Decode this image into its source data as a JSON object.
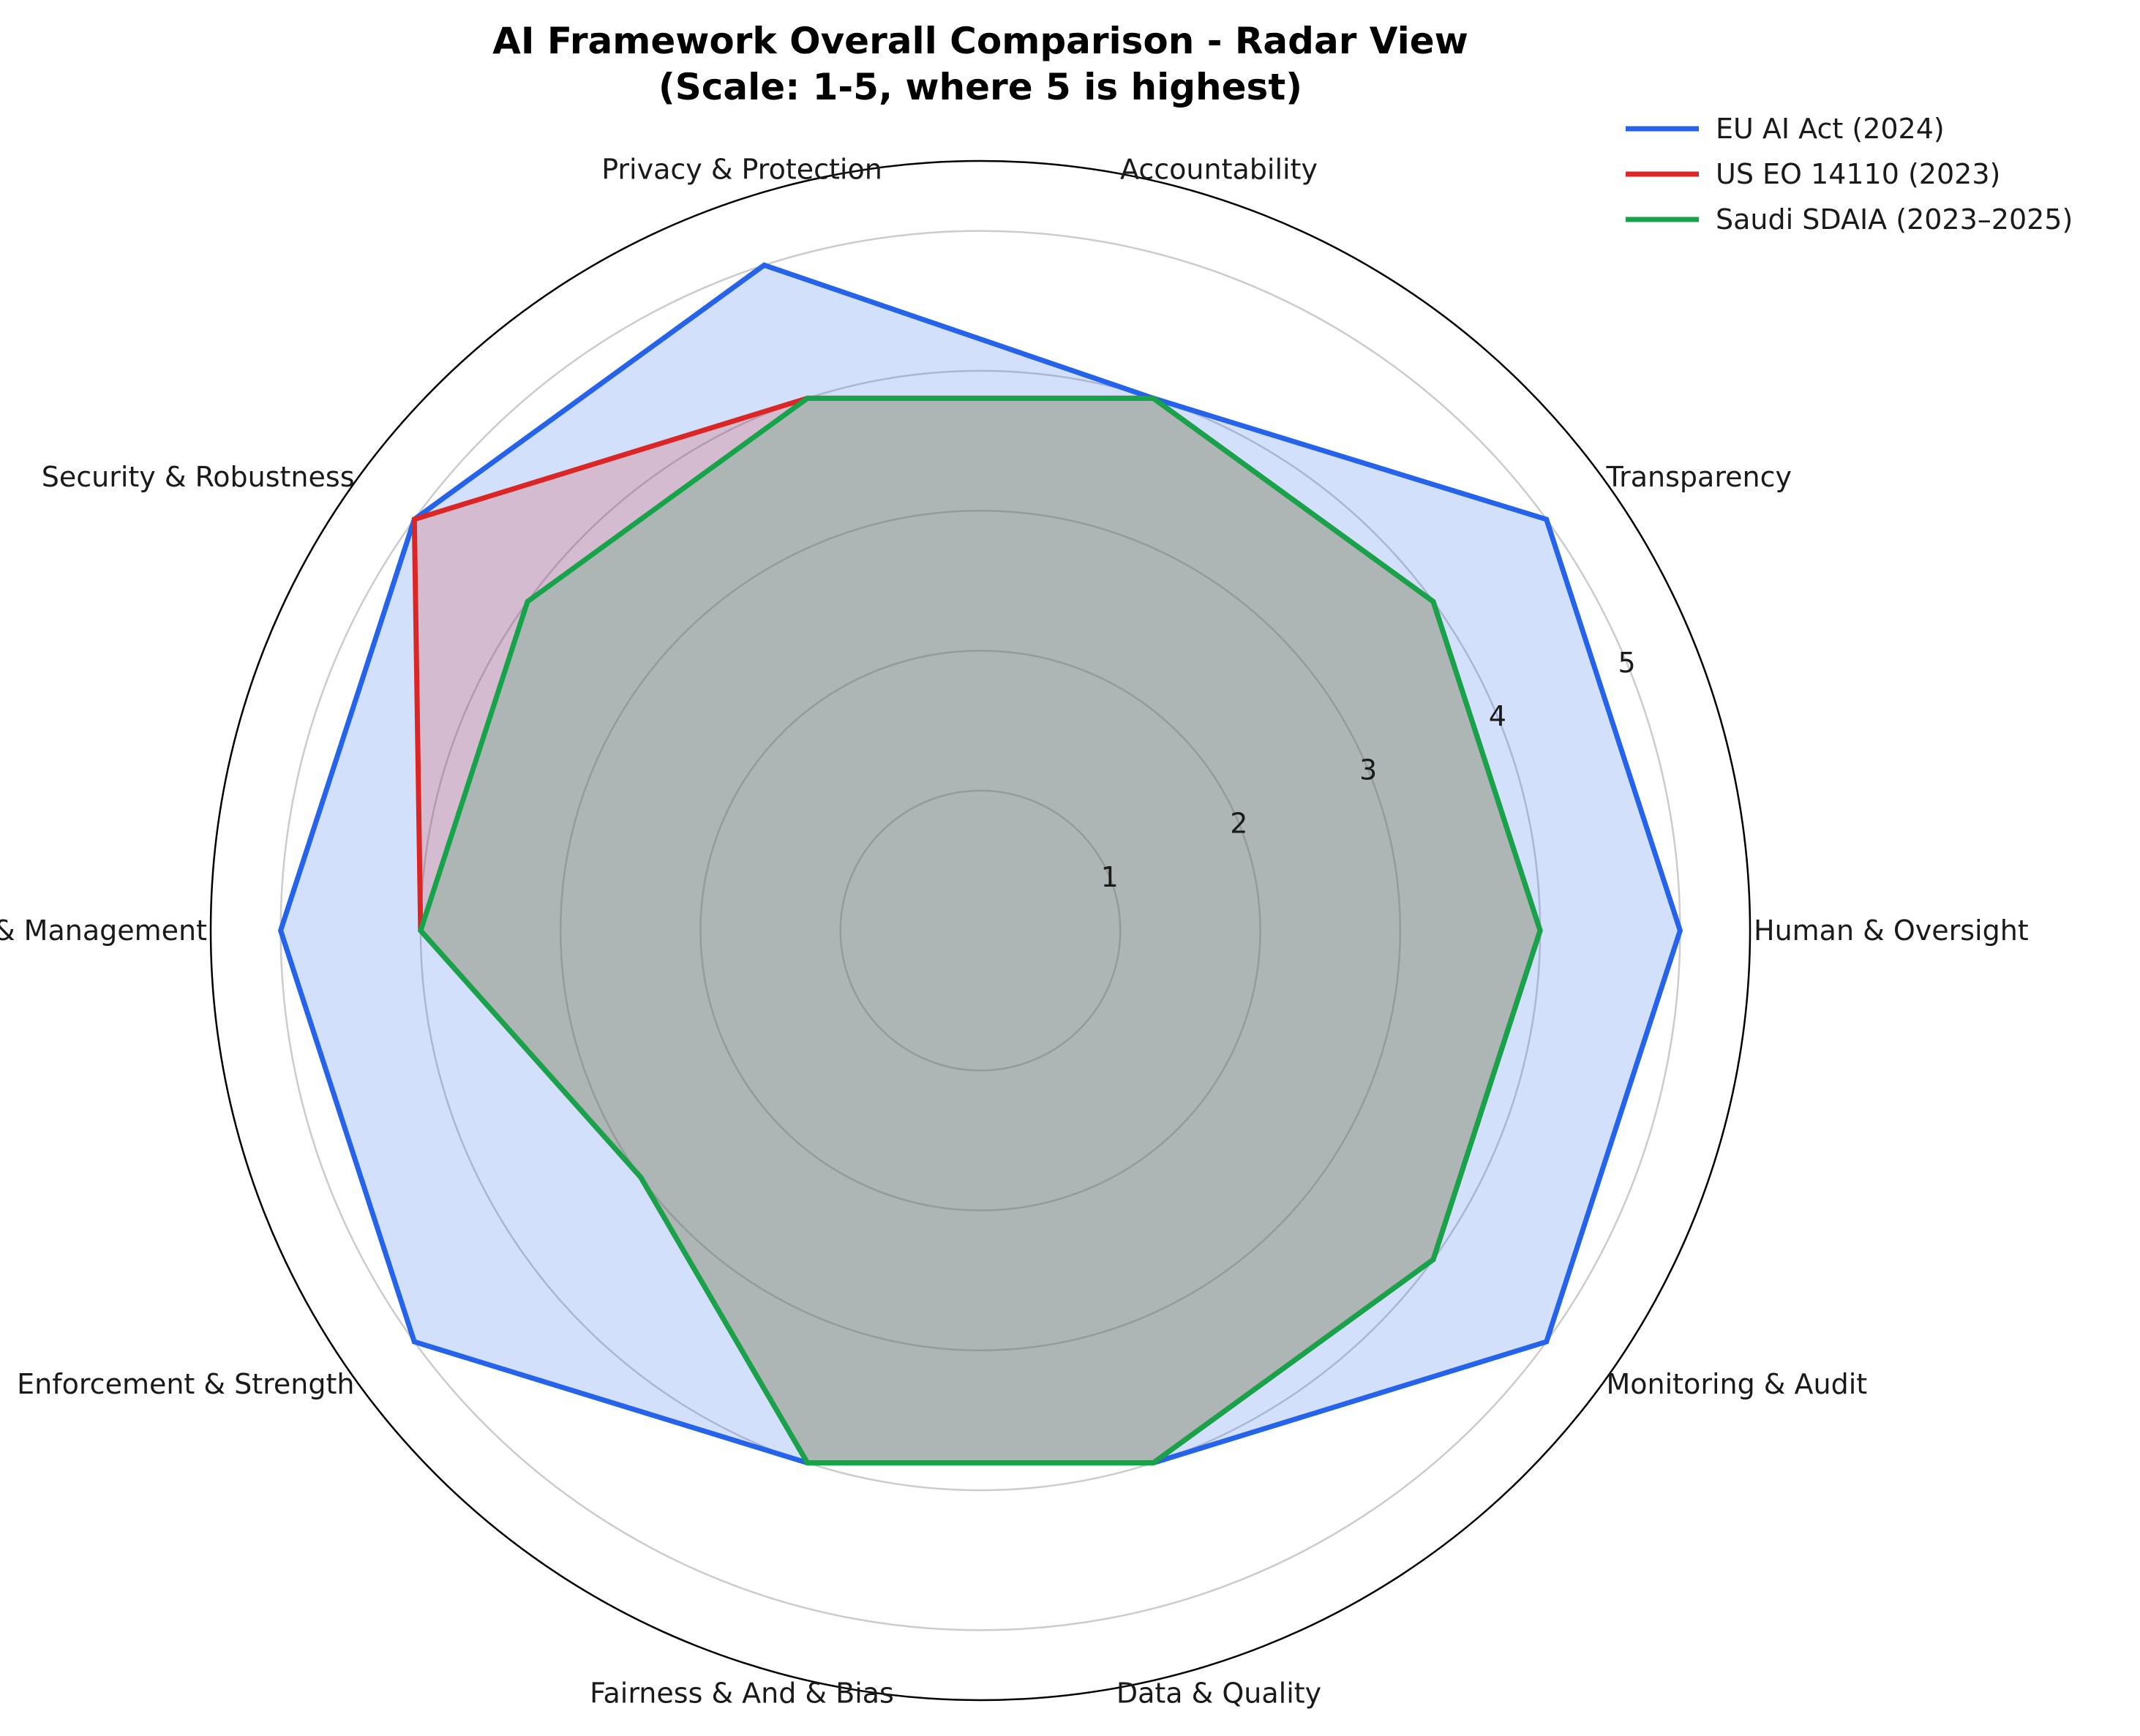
{
  "chart_data": {
    "type": "radar",
    "title_line1": "AI Framework Overall Comparison - Radar View",
    "title_line2": "(Scale: 1-5, where 5 is highest)",
    "axes": [
      "Human & Oversight",
      "Transparency",
      "Accountability",
      "Privacy & Protection",
      "Security & Robustness",
      "Risk & Management",
      "Enforcement & Strength",
      "Fairness & And & Bias",
      "Data & Quality",
      "Monitoring & Audit"
    ],
    "radial_ticks": [
      "1",
      "2",
      "3",
      "4",
      "5"
    ],
    "rmax": 5.5,
    "grid": true,
    "legend_placement": "top-right",
    "series": [
      {
        "name": "EU AI Act (2024)",
        "color": "#2563eb",
        "values": [
          5,
          5,
          4,
          5,
          5,
          5,
          5,
          4,
          4,
          5
        ]
      },
      {
        "name": "US EO 14110 (2023)",
        "color": "#dc2626",
        "values": [
          4,
          4,
          4,
          4,
          5,
          4,
          3,
          4,
          4,
          4
        ]
      },
      {
        "name": "Saudi SDAIA (2023–2025)",
        "color": "#16a34a",
        "values": [
          4,
          4,
          4,
          4,
          4,
          4,
          3,
          4,
          4,
          4
        ]
      }
    ]
  }
}
